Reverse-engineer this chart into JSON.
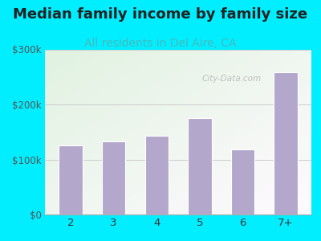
{
  "title": "Median family income by family size",
  "subtitle": "All residents in Del Aire, CA",
  "categories": [
    "2",
    "3",
    "4",
    "5",
    "6",
    "7+"
  ],
  "values": [
    125000,
    133000,
    143000,
    175000,
    118000,
    258000
  ],
  "bar_color": "#b3a8cc",
  "title_fontsize": 13,
  "subtitle_fontsize": 10,
  "subtitle_color": "#4ab8b8",
  "title_color": "#222222",
  "background_outer": "#00eeff",
  "ylim": [
    0,
    300000
  ],
  "yticks": [
    0,
    100000,
    200000,
    300000
  ],
  "ytick_labels": [
    "$0",
    "$100k",
    "$200k",
    "$300k"
  ],
  "watermark": "City-Data.com"
}
